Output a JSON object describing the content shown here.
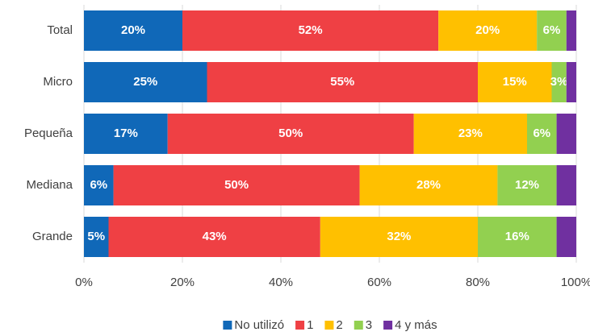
{
  "chart_data": {
    "type": "stacked-barh",
    "categories": [
      "Total",
      "Micro",
      "Pequeña",
      "Mediana",
      "Grande"
    ],
    "series": [
      {
        "name": "No utilizó",
        "color": "#1068b8",
        "values": [
          20,
          25,
          17,
          6,
          5
        ],
        "value_labels": [
          "20%",
          "25%",
          "17%",
          "6%",
          "5%"
        ]
      },
      {
        "name": "1",
        "color": "#ef4044",
        "values": [
          52,
          55,
          50,
          50,
          43
        ],
        "value_labels": [
          "52%",
          "55%",
          "50%",
          "50%",
          "43%"
        ]
      },
      {
        "name": "2",
        "color": "#ffc000",
        "values": [
          20,
          15,
          23,
          28,
          32
        ],
        "value_labels": [
          "20%",
          "15%",
          "23%",
          "28%",
          "32%"
        ]
      },
      {
        "name": "3",
        "color": "#92d050",
        "values": [
          6,
          3,
          6,
          12,
          16
        ],
        "value_labels": [
          "6%",
          "3%",
          "6%",
          "12%",
          "16%"
        ]
      },
      {
        "name": "4 y más",
        "color": "#7030a0",
        "values": [
          2,
          2,
          4,
          4,
          4
        ]
      }
    ],
    "xlim": [
      0,
      100
    ],
    "xticks": [
      {
        "value": 0,
        "label": "0%"
      },
      {
        "value": 20,
        "label": "20%"
      },
      {
        "value": 40,
        "label": "40%"
      },
      {
        "value": 60,
        "label": "60%"
      },
      {
        "value": 80,
        "label": "80%"
      },
      {
        "value": 100,
        "label": "100%"
      }
    ],
    "grid": true,
    "legend": "bottom"
  }
}
